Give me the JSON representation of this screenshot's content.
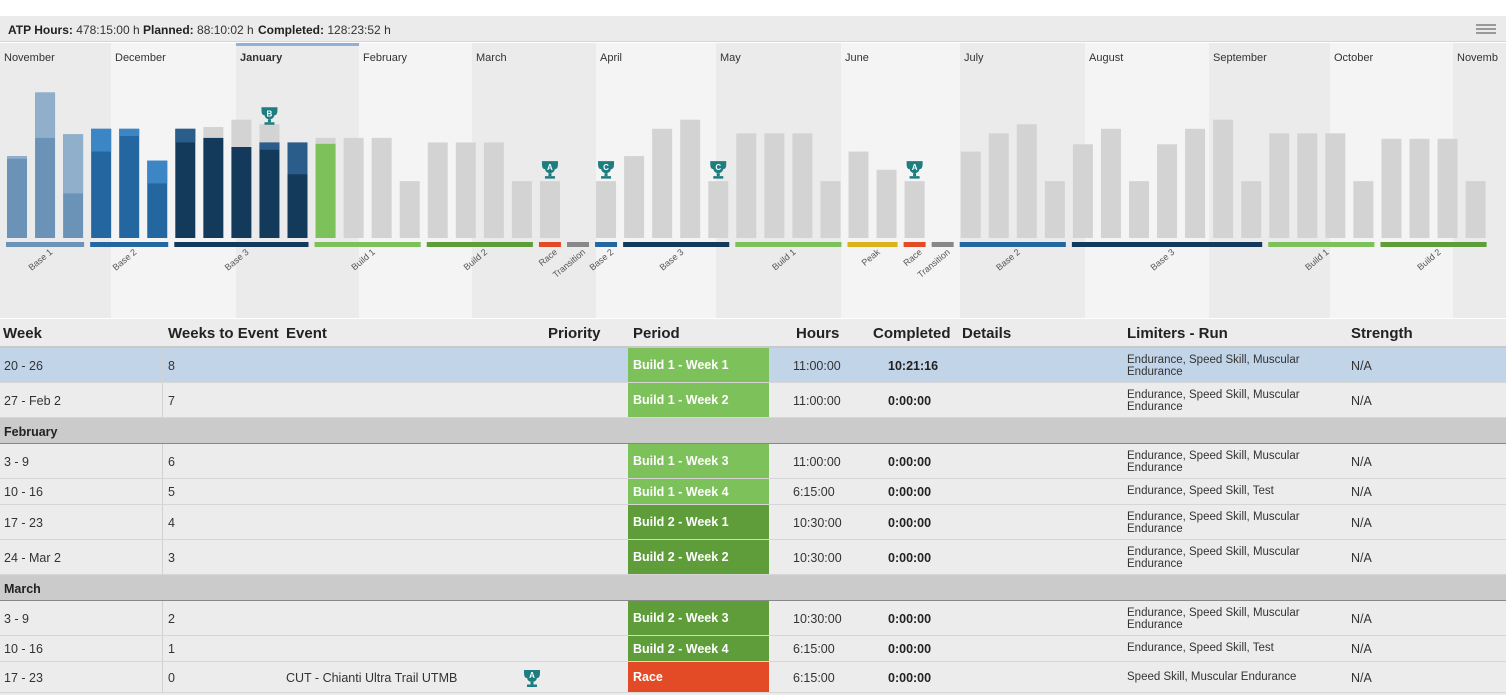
{
  "summary": {
    "atp_label": "ATP Hours:",
    "atp_value": "478:15:00 h",
    "planned_label": "Planned:",
    "planned_value": "88:10:02 h",
    "completed_label": "Completed:",
    "completed_value": "128:23:52 h",
    "menu_icon": "hamburger-menu-icon"
  },
  "colors": {
    "completed_light": "#6b93b7",
    "completed_light_top": "#8fafca",
    "completed_mid": "#2466a0",
    "completed_mid_top": "#3d86c6",
    "completed_dark": "#133a5b",
    "completed_dark_top": "#2a5d8a",
    "current": "#7dc15b",
    "planned": "#d3d3d3",
    "band_light": "#f4f4f4",
    "band_dark": "#ebebeb",
    "trophy": "#1e7d7f",
    "build1": "#7dc15b",
    "build2": "#5f9d3a",
    "race": "#e24b26",
    "transition": "#888888",
    "peak": "#d9b21c",
    "base1": "#6b93b7",
    "base2": "#2466a0",
    "base3": "#133a5b"
  },
  "timeline": {
    "months": [
      "November",
      "December",
      "January",
      "February",
      "March",
      "April",
      "May",
      "June",
      "July",
      "August",
      "September",
      "October",
      "Novemb"
    ],
    "current_month": "January",
    "periods": [
      {
        "label": "Base 1",
        "color": "base1",
        "weeks": 3
      },
      {
        "label": "Base 2",
        "color": "base2",
        "weeks": 3
      },
      {
        "label": "Base 3",
        "color": "base3",
        "weeks": 5
      },
      {
        "label": "Build 1",
        "color": "build1",
        "weeks": 4
      },
      {
        "label": "Build 2",
        "color": "build2",
        "weeks": 4
      },
      {
        "label": "Race",
        "color": "race",
        "weeks": 1
      },
      {
        "label": "Transition",
        "color": "transition",
        "weeks": 1
      },
      {
        "label": "Base 2",
        "color": "base2",
        "weeks": 1
      },
      {
        "label": "Base 3",
        "color": "base3",
        "weeks": 4
      },
      {
        "label": "Build 1",
        "color": "build1",
        "weeks": 4
      },
      {
        "label": "Peak",
        "color": "peak",
        "weeks": 2
      },
      {
        "label": "Race",
        "color": "race",
        "weeks": 1
      },
      {
        "label": "Transition",
        "color": "transition",
        "weeks": 1
      },
      {
        "label": "Base 2",
        "color": "base2",
        "weeks": 4
      },
      {
        "label": "Base 3",
        "color": "base3",
        "weeks": 7
      },
      {
        "label": "Build 1",
        "color": "build1",
        "weeks": 4
      },
      {
        "label": "Build 2",
        "color": "build2",
        "weeks": 4
      }
    ],
    "weeks": [
      {
        "hours": 9.0,
        "completed": 9.0,
        "cat": "light",
        "top": 0.3
      },
      {
        "hours": 16.0,
        "completed": 16.0,
        "cat": "light",
        "top": 5.0
      },
      {
        "hours": 11.4,
        "completed": 11.4,
        "cat": "light",
        "top": 6.5
      },
      {
        "hours": 12.0,
        "completed": 12.0,
        "cat": "mid",
        "top": 2.5
      },
      {
        "hours": 12.0,
        "completed": 12.0,
        "cat": "mid",
        "top": 0.8
      },
      {
        "hours": 8.5,
        "completed": 8.5,
        "cat": "mid",
        "top": 2.5
      },
      {
        "hours": 12.0,
        "completed": 12.0,
        "cat": "dark",
        "top": 1.5
      },
      {
        "hours": 12.2,
        "completed": 11.0,
        "cat": "dark",
        "top": 0
      },
      {
        "hours": 13.0,
        "completed": 10.0,
        "cat": "dark",
        "top": 0
      },
      {
        "hours": 12.5,
        "completed": 10.5,
        "cat": "dark",
        "top": 0.8
      },
      {
        "hours": 10.5,
        "completed": 10.5,
        "cat": "dark",
        "top": 3.5
      },
      {
        "hours": 11.0,
        "completed": 10.35,
        "cat": "current",
        "top": 0
      },
      {
        "hours": 11.0
      },
      {
        "hours": 11.0
      },
      {
        "hours": 6.25
      },
      {
        "hours": 10.5
      },
      {
        "hours": 10.5
      },
      {
        "hours": 10.5
      },
      {
        "hours": 6.25
      },
      {
        "hours": 6.25,
        "event": "A"
      },
      {
        "hours": 0
      },
      {
        "hours": 6.25,
        "event": "C"
      },
      {
        "hours": 9.0
      },
      {
        "hours": 12.0
      },
      {
        "hours": 13.0
      },
      {
        "hours": 6.25,
        "event": "C"
      },
      {
        "hours": 11.5
      },
      {
        "hours": 11.5
      },
      {
        "hours": 11.5
      },
      {
        "hours": 6.25
      },
      {
        "hours": 9.5
      },
      {
        "hours": 7.5
      },
      {
        "hours": 6.25,
        "event": "A"
      },
      {
        "hours": 0
      },
      {
        "hours": 9.5
      },
      {
        "hours": 11.5
      },
      {
        "hours": 12.5
      },
      {
        "hours": 6.25
      },
      {
        "hours": 10.3
      },
      {
        "hours": 12.0
      },
      {
        "hours": 6.25
      },
      {
        "hours": 10.3
      },
      {
        "hours": 12.0
      },
      {
        "hours": 13.0
      },
      {
        "hours": 6.25
      },
      {
        "hours": 11.5
      },
      {
        "hours": 11.5
      },
      {
        "hours": 11.5
      },
      {
        "hours": 6.25
      },
      {
        "hours": 10.9
      },
      {
        "hours": 10.9
      },
      {
        "hours": 10.9
      },
      {
        "hours": 6.25
      }
    ],
    "event_b_marker": {
      "week": 9,
      "label": "B"
    }
  },
  "table": {
    "headers": {
      "week": "Week",
      "weeks_to_event": "Weeks to Event",
      "event": "Event",
      "priority": "Priority",
      "period": "Period",
      "hours": "Hours",
      "completed": "Completed",
      "details": "Details",
      "limiters": "Limiters - Run",
      "strength": "Strength"
    },
    "rows": [
      {
        "type": "week",
        "week": "20 - 26",
        "wte": "8",
        "event": "",
        "priority": "",
        "period": "Build 1 - Week 1",
        "pcolor": "build1",
        "hours": "11:00:00",
        "completed": "10:21:16",
        "limiters": "Endurance, Speed Skill, Muscular Endurance",
        "strength": "N/A",
        "selected": true,
        "h": 35
      },
      {
        "type": "week",
        "week": "27 - Feb 2",
        "wte": "7",
        "event": "",
        "priority": "",
        "period": "Build 1 - Week 2",
        "pcolor": "build1",
        "hours": "11:00:00",
        "completed": "0:00:00",
        "limiters": "Endurance, Speed Skill, Muscular Endurance",
        "strength": "N/A",
        "h": 35
      },
      {
        "type": "month",
        "label": "February",
        "h": 26
      },
      {
        "type": "week",
        "week": "3 - 9",
        "wte": "6",
        "event": "",
        "priority": "",
        "period": "Build 1 - Week 3",
        "pcolor": "build1",
        "hours": "11:00:00",
        "completed": "0:00:00",
        "limiters": "Endurance, Speed Skill, Muscular Endurance",
        "strength": "N/A",
        "h": 35
      },
      {
        "type": "week",
        "week": "10 - 16",
        "wte": "5",
        "event": "",
        "priority": "",
        "period": "Build 1 - Week 4",
        "pcolor": "build1",
        "hours": "6:15:00",
        "completed": "0:00:00",
        "limiters": "Endurance, Speed Skill, Test",
        "strength": "N/A",
        "h": 26
      },
      {
        "type": "week",
        "week": "17 - 23",
        "wte": "4",
        "event": "",
        "priority": "",
        "period": "Build 2 - Week 1",
        "pcolor": "build2",
        "hours": "10:30:00",
        "completed": "0:00:00",
        "limiters": "Endurance, Speed Skill, Muscular Endurance",
        "strength": "N/A",
        "h": 35
      },
      {
        "type": "week",
        "week": "24 - Mar 2",
        "wte": "3",
        "event": "",
        "priority": "",
        "period": "Build 2 - Week 2",
        "pcolor": "build2",
        "hours": "10:30:00",
        "completed": "0:00:00",
        "limiters": "Endurance, Speed Skill, Muscular Endurance",
        "strength": "N/A",
        "h": 35
      },
      {
        "type": "month",
        "label": "March",
        "h": 26
      },
      {
        "type": "week",
        "week": "3 - 9",
        "wte": "2",
        "event": "",
        "priority": "",
        "period": "Build 2 - Week 3",
        "pcolor": "build2",
        "hours": "10:30:00",
        "completed": "0:00:00",
        "limiters": "Endurance, Speed Skill, Muscular Endurance",
        "strength": "N/A",
        "h": 35
      },
      {
        "type": "week",
        "week": "10 - 16",
        "wte": "1",
        "event": "",
        "priority": "",
        "period": "Build 2 - Week 4",
        "pcolor": "build2",
        "hours": "6:15:00",
        "completed": "0:00:00",
        "limiters": "Endurance, Speed Skill, Test",
        "strength": "N/A",
        "h": 26
      },
      {
        "type": "week",
        "week": "17 - 23",
        "wte": "0",
        "event": "CUT - Chianti Ultra Trail UTMB",
        "priority": "A",
        "period": "Race",
        "pcolor": "race",
        "hours": "6:15:00",
        "completed": "0:00:00",
        "limiters": "Speed Skill, Muscular Endurance",
        "strength": "N/A",
        "h": 31
      }
    ]
  }
}
